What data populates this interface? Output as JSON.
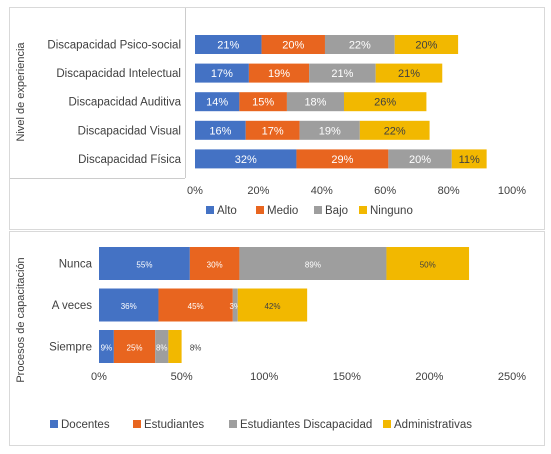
{
  "chart_data": [
    {
      "type": "bar",
      "orientation": "horizontal",
      "stacked": true,
      "ylabel": "Nivel de experiencia",
      "categories": [
        "Discapacidad Psico-social",
        "Discapacidad Intelectual",
        "Discapacidad Auditiva",
        "Discapacidad Visual",
        "Discapacidad Física"
      ],
      "series": [
        {
          "name": "Alto",
          "color": "#4472C4",
          "values": [
            21,
            17,
            14,
            16,
            32
          ]
        },
        {
          "name": "Medio",
          "color": "#E8651F",
          "values": [
            20,
            19,
            15,
            17,
            29
          ]
        },
        {
          "name": "Bajo",
          "color": "#9E9E9E",
          "values": [
            22,
            21,
            18,
            19,
            20
          ]
        },
        {
          "name": "Ninguno",
          "color": "#F2B800",
          "values": [
            20,
            21,
            26,
            22,
            11
          ]
        }
      ],
      "data_labels": [
        [
          "21%",
          "17%",
          "14%",
          "16%",
          "32%"
        ],
        [
          "20%",
          "19%",
          "15%",
          "17%",
          "29%"
        ],
        [
          "22%",
          "21%",
          "18%",
          "19%",
          "20%"
        ],
        [
          "20%",
          "21%",
          "26%",
          "22%",
          "11%"
        ]
      ],
      "xlim": [
        0,
        100
      ],
      "xticks": [
        0,
        20,
        40,
        60,
        80,
        100
      ],
      "xtick_labels": [
        "0%",
        "20%",
        "40%",
        "60%",
        "80%",
        "100%"
      ],
      "grid": false,
      "legend": "bottom"
    },
    {
      "type": "bar",
      "orientation": "horizontal",
      "stacked": true,
      "ylabel": "Procesos de capacitación",
      "categories": [
        "Nunca",
        "A veces",
        "Siempre"
      ],
      "series": [
        {
          "name": "Docentes",
          "color": "#4472C4",
          "values": [
            55,
            36,
            9
          ]
        },
        {
          "name": "Estudiantes",
          "color": "#E8651F",
          "values": [
            30,
            45,
            25
          ]
        },
        {
          "name": "Estudiantes Discapacidad",
          "color": "#9E9E9E",
          "values": [
            89,
            3,
            8
          ]
        },
        {
          "name": "Administrativas",
          "color": "#F2B800",
          "values": [
            50,
            42,
            8
          ]
        }
      ],
      "data_labels": [
        [
          "55%",
          "36%",
          "9%"
        ],
        [
          "30%",
          "45%",
          "25%"
        ],
        [
          "89%",
          "3%",
          "8%"
        ],
        [
          "50%",
          "42%",
          "8%"
        ]
      ],
      "xlim": [
        0,
        250
      ],
      "xticks": [
        0,
        50,
        100,
        150,
        200,
        250
      ],
      "xtick_labels": [
        "0%",
        "50%",
        "100%",
        "150%",
        "200%",
        "250%"
      ],
      "grid": false,
      "legend": "bottom"
    }
  ]
}
